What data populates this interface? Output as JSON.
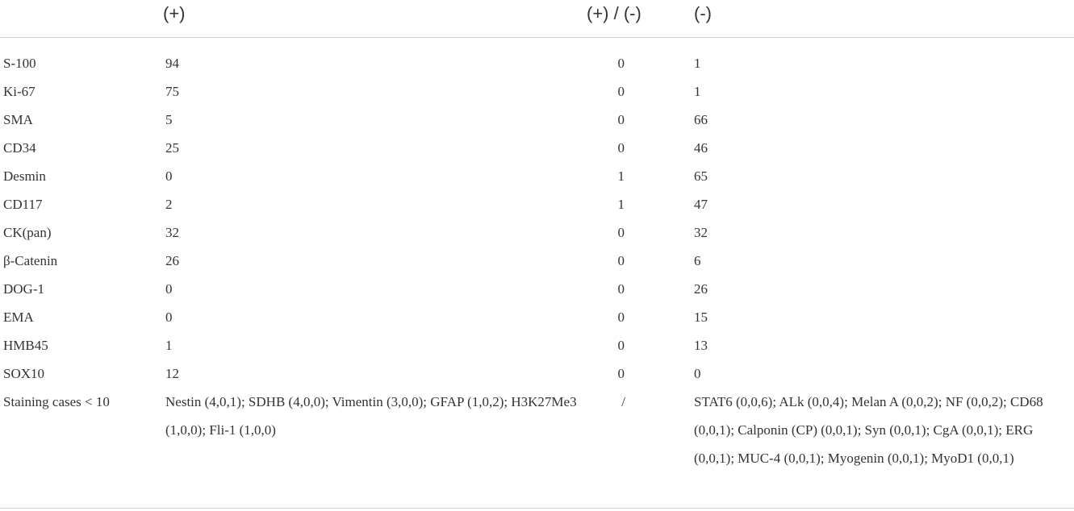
{
  "table": {
    "headers": [
      "",
      "(+)",
      "(+) / (-)",
      "(-)"
    ],
    "rows": [
      {
        "marker": "S-100",
        "positive": "94",
        "mixed": "0",
        "negative": "1"
      },
      {
        "marker": "Ki-67",
        "positive": "75",
        "mixed": "0",
        "negative": "1"
      },
      {
        "marker": "SMA",
        "positive": "5",
        "mixed": "0",
        "negative": "66"
      },
      {
        "marker": "CD34",
        "positive": "25",
        "mixed": "0",
        "negative": "46"
      },
      {
        "marker": "Desmin",
        "positive": "0",
        "mixed": "1",
        "negative": "65"
      },
      {
        "marker": "CD117",
        "positive": "2",
        "mixed": "1",
        "negative": "47"
      },
      {
        "marker": "CK(pan)",
        "positive": "32",
        "mixed": "0",
        "negative": "32"
      },
      {
        "marker": "β-Catenin",
        "positive": "26",
        "mixed": "0",
        "negative": "6"
      },
      {
        "marker": "DOG-1",
        "positive": "0",
        "mixed": "0",
        "negative": "26"
      },
      {
        "marker": "EMA",
        "positive": "0",
        "mixed": "0",
        "negative": "15"
      },
      {
        "marker": "HMB45",
        "positive": "1",
        "mixed": "0",
        "negative": "13"
      },
      {
        "marker": "SOX10",
        "positive": "12",
        "mixed": "0",
        "negative": "0"
      },
      {
        "marker": "Staining cases < 10",
        "positive": "Nestin (4,0,1); SDHB (4,0,0); Vimentin (3,0,0); GFAP (1,0,2); H3K27Me3 (1,0,0); Fli-1 (1,0,0)",
        "mixed": "/",
        "negative": "STAT6 (0,0,6); ALk (0,0,4); Melan A (0,0,2); NF (0,0,2); CD68 (0,0,1); Calponin (CP) (0,0,1); Syn (0,0,1); CgA (0,0,1); ERG (0,0,1); MUC-4 (0,0,1); Myogenin (0,0,1); MyoD1 (0,0,1)"
      }
    ]
  }
}
